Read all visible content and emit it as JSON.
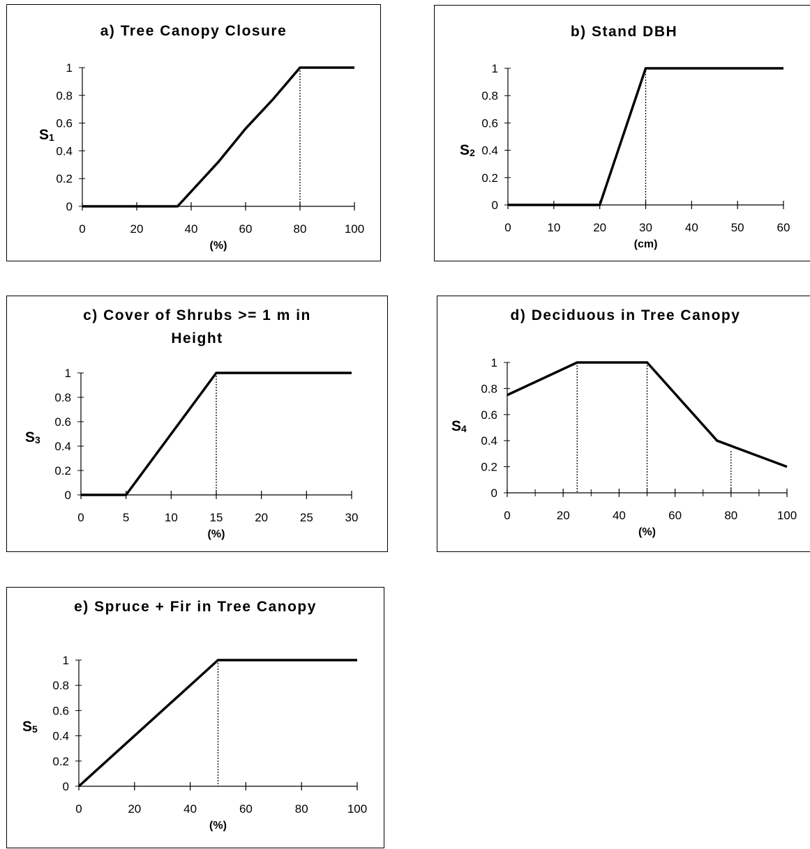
{
  "chart_data": [
    {
      "type": "line",
      "title": "a) Tree Canopy Closure",
      "ylabel": "S",
      "ylabel_sub": "1",
      "xlabel": "(%)",
      "xticks": [
        0,
        20,
        40,
        60,
        80,
        100
      ],
      "yticks": [
        0,
        0.2,
        0.4,
        0.6,
        0.8,
        1
      ],
      "xlim": [
        0,
        100
      ],
      "ylim": [
        0,
        1
      ],
      "minor_xticks": [],
      "series": [
        {
          "x": [
            0,
            35,
            50,
            60,
            70,
            80,
            100
          ],
          "y": [
            0,
            0,
            0.32,
            0.56,
            0.77,
            1,
            1
          ]
        }
      ],
      "reference_lines": [
        {
          "x": 80,
          "y_top": 1
        }
      ]
    },
    {
      "type": "line",
      "title": "b) Stand DBH",
      "ylabel": "S",
      "ylabel_sub": "2",
      "xlabel": "(cm)",
      "xticks": [
        0,
        10,
        20,
        30,
        40,
        50,
        60
      ],
      "yticks": [
        0,
        0.2,
        0.4,
        0.6,
        0.8,
        1
      ],
      "xlim": [
        0,
        60
      ],
      "ylim": [
        0,
        1
      ],
      "minor_xticks": [],
      "series": [
        {
          "x": [
            0,
            20,
            30,
            60
          ],
          "y": [
            0,
            0,
            1,
            1
          ]
        }
      ],
      "reference_lines": [
        {
          "x": 30,
          "y_top": 1
        }
      ]
    },
    {
      "type": "line",
      "title": "c) Cover of Shrubs >= 1 m in Height",
      "title_lines": [
        "c) Cover of Shrubs >= 1 m in",
        "Height"
      ],
      "ylabel": "S",
      "ylabel_sub": "3",
      "xlabel": "(%)",
      "xticks": [
        0,
        5,
        10,
        15,
        20,
        25,
        30
      ],
      "yticks": [
        0,
        0.2,
        0.4,
        0.6,
        0.8,
        1
      ],
      "xlim": [
        0,
        30
      ],
      "ylim": [
        0,
        1
      ],
      "minor_xticks": [],
      "series": [
        {
          "x": [
            0,
            5,
            15,
            30
          ],
          "y": [
            0,
            0,
            1,
            1
          ]
        }
      ],
      "reference_lines": [
        {
          "x": 15,
          "y_top": 1
        }
      ]
    },
    {
      "type": "line",
      "title": "d) Deciduous in Tree Canopy",
      "ylabel": "S",
      "ylabel_sub": "4",
      "xlabel": "(%)",
      "xticks": [
        0,
        20,
        40,
        60,
        80,
        100
      ],
      "yticks": [
        0,
        0.2,
        0.4,
        0.6,
        0.8,
        1
      ],
      "xlim": [
        0,
        100
      ],
      "ylim": [
        0,
        1
      ],
      "minor_xticks": [
        10,
        30,
        50,
        70,
        90
      ],
      "series": [
        {
          "x": [
            0,
            25,
            50,
            75,
            100
          ],
          "y": [
            0.75,
            1,
            1,
            0.4,
            0.2
          ]
        }
      ],
      "reference_lines": [
        {
          "x": 25,
          "y_top": 1
        },
        {
          "x": 50,
          "y_top": 1
        },
        {
          "x": 80,
          "y_top": 0.32
        }
      ]
    },
    {
      "type": "line",
      "title": "e) Spruce + Fir in Tree Canopy",
      "ylabel": "S",
      "ylabel_sub": "5",
      "xlabel": "(%)",
      "xticks": [
        0,
        20,
        40,
        60,
        80,
        100
      ],
      "yticks": [
        0,
        0.2,
        0.4,
        0.6,
        0.8,
        1
      ],
      "xlim": [
        0,
        100
      ],
      "ylim": [
        0,
        1
      ],
      "minor_xticks": [],
      "series": [
        {
          "x": [
            0,
            50,
            100
          ],
          "y": [
            0,
            1,
            1
          ]
        }
      ],
      "reference_lines": [
        {
          "x": 50,
          "y_top": 1
        }
      ]
    }
  ]
}
